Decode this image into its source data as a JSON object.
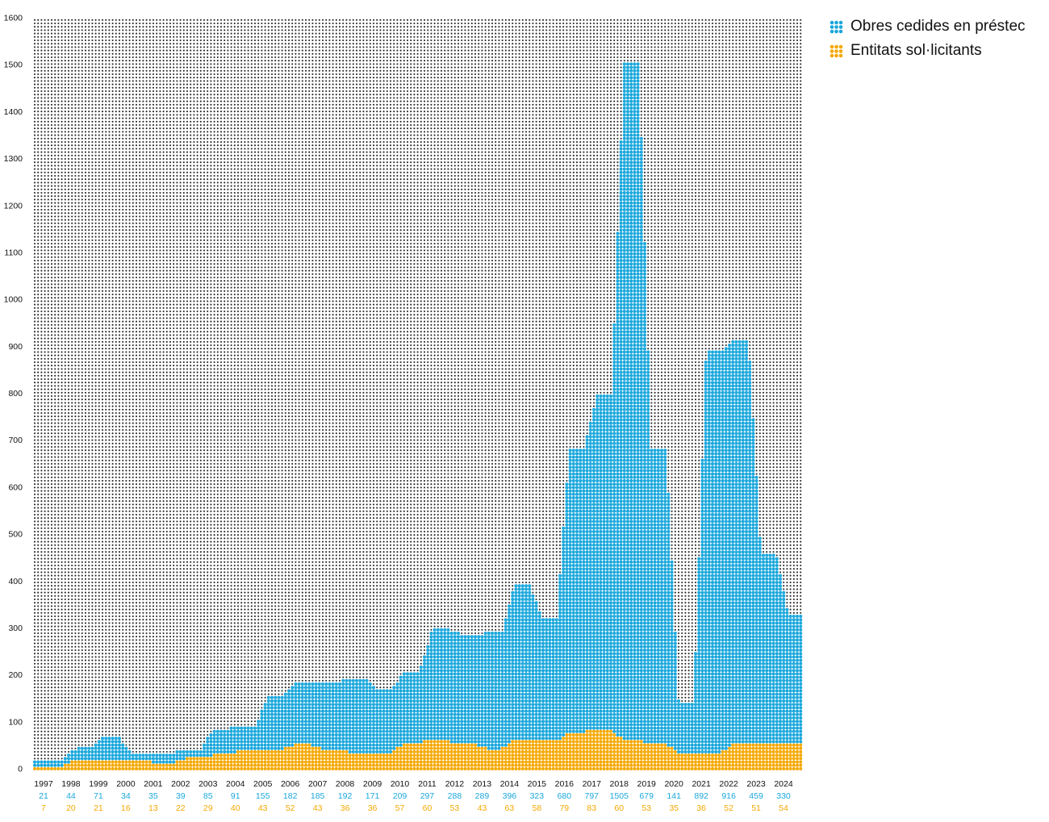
{
  "colors": {
    "series_a": "#1aa7dc",
    "series_b": "#f5a800",
    "grid_dot": "#222222",
    "text": "#111111"
  },
  "legend": {
    "series_a_label": "Obres cedides en préstec",
    "series_b_label": "Entitats sol·licitants"
  },
  "chart_data": {
    "type": "area",
    "style": "dot-grid",
    "ylim": [
      0,
      1600
    ],
    "y_ticks": [
      "0",
      "100",
      "200",
      "300",
      "400",
      "500",
      "600",
      "700",
      "800",
      "900",
      "1000",
      "1100",
      "1200",
      "1300",
      "1400",
      "1500",
      "1600"
    ],
    "x": [
      "1997",
      "1998",
      "1999",
      "2000",
      "2001",
      "2002",
      "2003",
      "2004",
      "2005",
      "2006",
      "2007",
      "2008",
      "2009",
      "2010",
      "2011",
      "2012",
      "2013",
      "2014",
      "2015",
      "2016",
      "2017",
      "2018",
      "2019",
      "2020",
      "2021",
      "2022",
      "2023",
      "2024"
    ],
    "series": [
      {
        "name": "Obres cedides en préstec",
        "values": [
          21,
          44,
          71,
          34,
          35,
          39,
          85,
          91,
          155,
          182,
          185,
          192,
          171,
          209,
          297,
          288,
          289,
          396,
          323,
          680,
          797,
          1505,
          679,
          141,
          892,
          916,
          459,
          330
        ]
      },
      {
        "name": "Entitats sol·licitants",
        "values": [
          7,
          20,
          21,
          16,
          13,
          22,
          29,
          40,
          43,
          52,
          43,
          36,
          36,
          57,
          60,
          53,
          43,
          63,
          58,
          79,
          83,
          60,
          53,
          35,
          36,
          52,
          51,
          54
        ]
      }
    ],
    "value_labels_a": [
      "21",
      "44",
      "71",
      "34",
      "35",
      "39",
      "85",
      "91",
      "155",
      "182",
      "185",
      "192",
      "171",
      "209",
      "297",
      "288",
      "289",
      "396",
      "323",
      "680",
      "797",
      "1505",
      "679",
      "141",
      "892",
      "916",
      "459",
      "330"
    ],
    "value_labels_b": [
      "7",
      "20",
      "21",
      "16",
      "13",
      "22",
      "29",
      "40",
      "43",
      "52",
      "43",
      "36",
      "36",
      "57",
      "60",
      "53",
      "43",
      "63",
      "58",
      "79",
      "83",
      "60",
      "53",
      "35",
      "36",
      "52",
      "51",
      "54"
    ],
    "grid": true,
    "legend_position": "top-right"
  }
}
